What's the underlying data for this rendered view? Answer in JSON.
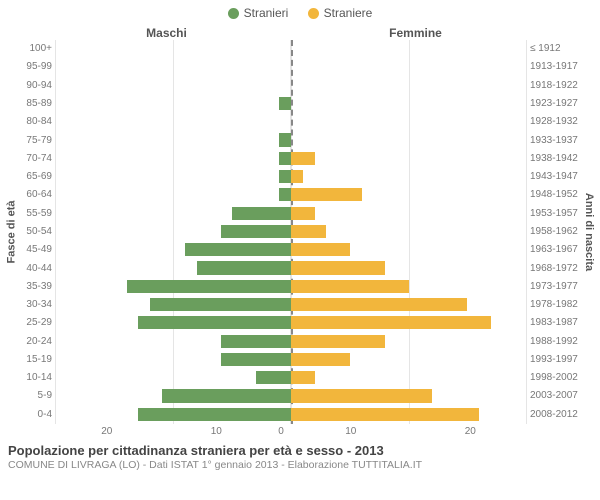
{
  "legend": {
    "males": {
      "label": "Stranieri",
      "color": "#6a9e5d"
    },
    "females": {
      "label": "Straniere",
      "color": "#f2b63c"
    }
  },
  "header": {
    "left": "Maschi",
    "right": "Femmine"
  },
  "y_left_title": "Fasce di età",
  "y_right_title": "Anni di nascita",
  "chart": {
    "type": "population-pyramid",
    "xmax": 20,
    "xticks": [
      20,
      10,
      0,
      10,
      20
    ],
    "grid_color": "#e5e5e5",
    "centerline_color": "#888888",
    "background_color": "#ffffff",
    "bar_color_left": "#6a9e5d",
    "bar_color_right": "#f2b63c",
    "rows": [
      {
        "age": "100+",
        "year": "≤ 1912",
        "m": 0,
        "f": 0
      },
      {
        "age": "95-99",
        "year": "1913-1917",
        "m": 0,
        "f": 0
      },
      {
        "age": "90-94",
        "year": "1918-1922",
        "m": 0,
        "f": 0
      },
      {
        "age": "85-89",
        "year": "1923-1927",
        "m": 1,
        "f": 0
      },
      {
        "age": "80-84",
        "year": "1928-1932",
        "m": 0,
        "f": 0
      },
      {
        "age": "75-79",
        "year": "1933-1937",
        "m": 1,
        "f": 0
      },
      {
        "age": "70-74",
        "year": "1938-1942",
        "m": 1,
        "f": 2
      },
      {
        "age": "65-69",
        "year": "1943-1947",
        "m": 1,
        "f": 1
      },
      {
        "age": "60-64",
        "year": "1948-1952",
        "m": 1,
        "f": 6
      },
      {
        "age": "55-59",
        "year": "1953-1957",
        "m": 5,
        "f": 2
      },
      {
        "age": "50-54",
        "year": "1958-1962",
        "m": 6,
        "f": 3
      },
      {
        "age": "45-49",
        "year": "1963-1967",
        "m": 9,
        "f": 5
      },
      {
        "age": "40-44",
        "year": "1968-1972",
        "m": 8,
        "f": 8
      },
      {
        "age": "35-39",
        "year": "1973-1977",
        "m": 14,
        "f": 10
      },
      {
        "age": "30-34",
        "year": "1978-1982",
        "m": 12,
        "f": 15
      },
      {
        "age": "25-29",
        "year": "1983-1987",
        "m": 13,
        "f": 17
      },
      {
        "age": "20-24",
        "year": "1988-1992",
        "m": 6,
        "f": 8
      },
      {
        "age": "15-19",
        "year": "1993-1997",
        "m": 6,
        "f": 5
      },
      {
        "age": "10-14",
        "year": "1998-2002",
        "m": 3,
        "f": 2
      },
      {
        "age": "5-9",
        "year": "2003-2007",
        "m": 11,
        "f": 12
      },
      {
        "age": "0-4",
        "year": "2008-2012",
        "m": 13,
        "f": 16
      }
    ]
  },
  "footer": {
    "title": "Popolazione per cittadinanza straniera per età e sesso - 2013",
    "subtitle": "COMUNE DI LIVRAGA (LO) - Dati ISTAT 1° gennaio 2013 - Elaborazione TUTTITALIA.IT"
  }
}
